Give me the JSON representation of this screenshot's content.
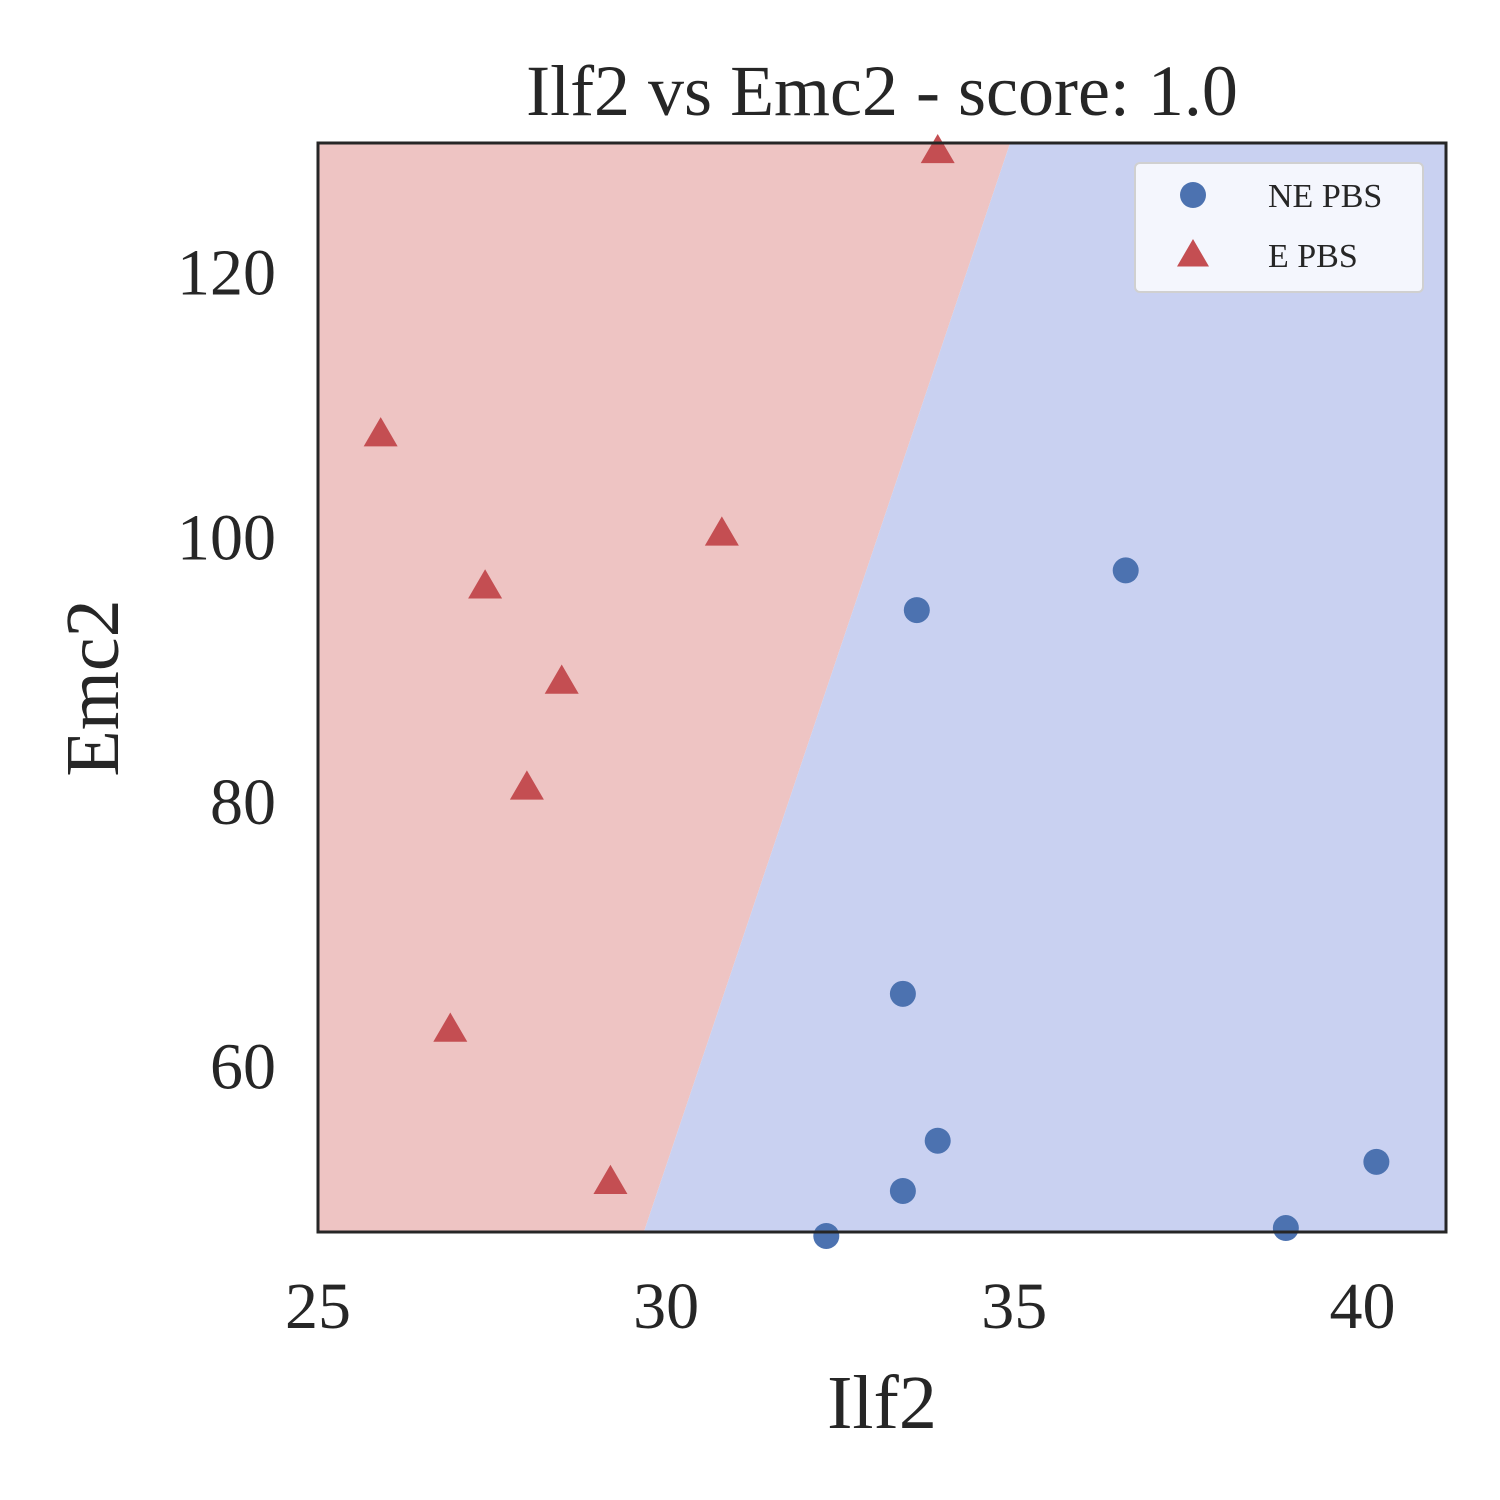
{
  "chart_data": {
    "type": "scatter",
    "title": "Ilf2 vs Emc2 - score: 1.0",
    "xlabel": "Ilf2",
    "ylabel": "Emc2",
    "xlim": [
      25,
      41.2
    ],
    "ylim": [
      47.5,
      129.8
    ],
    "xticks": [
      25,
      30,
      35,
      40
    ],
    "yticks": [
      60,
      80,
      100,
      120
    ],
    "grid": false,
    "legend_position": "top-right",
    "decision_regions": {
      "boundary_line": [
        [
          29.68,
          47.5
        ],
        [
          34.94,
          129.8
        ]
      ],
      "left_region_class": "E PBS",
      "right_region_class": "NE PBS",
      "colors": {
        "E PBS": "#eec4c3",
        "NE PBS": "#c9d1f1"
      }
    },
    "series": [
      {
        "name": "NE PBS",
        "marker": "circle",
        "color": "#4c72b0",
        "points": [
          [
            33.6,
            94.5
          ],
          [
            36.6,
            97.5
          ],
          [
            33.4,
            65.5
          ],
          [
            33.9,
            54.4
          ],
          [
            33.4,
            50.6
          ],
          [
            32.3,
            47.2
          ],
          [
            40.2,
            52.8
          ],
          [
            38.9,
            47.8
          ]
        ]
      },
      {
        "name": "E PBS",
        "marker": "triangle",
        "color": "#c44e52",
        "points": [
          [
            25.9,
            107.8
          ],
          [
            30.8,
            100.3
          ],
          [
            27.4,
            96.3
          ],
          [
            28.5,
            89.1
          ],
          [
            28.0,
            81.1
          ],
          [
            26.9,
            62.8
          ],
          [
            29.2,
            51.3
          ],
          [
            33.9,
            129.2
          ]
        ]
      }
    ]
  }
}
